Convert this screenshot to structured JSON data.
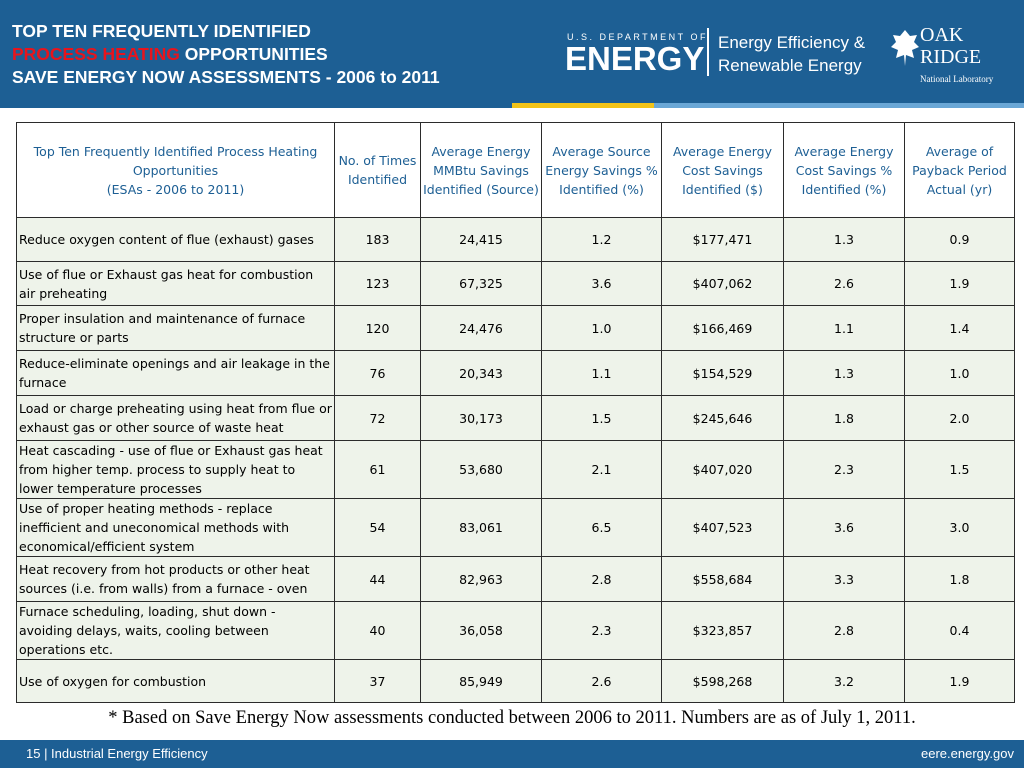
{
  "header": {
    "title_line1": "TOP TEN FREQUENTLY IDENTIFIED",
    "title_highlight": "PROCESS HEATING",
    "title_line2_rest": "OPPORTUNITIES",
    "title_line3": "SAVE ENERGY NOW ASSESSMENTS - 2006 to 2011",
    "doe_small": "U.S. DEPARTMENT OF",
    "doe_big": "ENERGY",
    "eere_line1": "Energy Efficiency &",
    "eere_line2": "Renewable Energy",
    "ornl_line1": "OAK",
    "ornl_line2": "RIDGE",
    "ornl_line3": "National Laboratory"
  },
  "table": {
    "columns": [
      [
        "Top Ten Frequently Identified Process Heating Opportunities",
        "(ESAs - 2006 to 2011)"
      ],
      [
        "No. of Times Identified"
      ],
      [
        "Average Energy MMBtu Savings Identified (Source)"
      ],
      [
        "Average Source Energy Savings % Identified (%)"
      ],
      [
        "Average Energy Cost Savings Identified ($)"
      ],
      [
        "Average Energy Cost Savings % Identified (%)"
      ],
      [
        "Average of Payback Period Actual (yr)"
      ]
    ],
    "rows": [
      [
        "Reduce oxygen content of flue (exhaust) gases",
        "183",
        "24,415",
        "1.2",
        "$177,471",
        "1.3",
        "0.9"
      ],
      [
        "Use of flue or Exhaust gas heat for combustion air preheating",
        "123",
        "67,325",
        "3.6",
        "$407,062",
        "2.6",
        "1.9"
      ],
      [
        "Proper insulation and maintenance of furnace structure or parts",
        "120",
        "24,476",
        "1.0",
        "$166,469",
        "1.1",
        "1.4"
      ],
      [
        "Reduce-eliminate openings and air leakage in the furnace",
        "76",
        "20,343",
        "1.1",
        "$154,529",
        "1.3",
        "1.0"
      ],
      [
        "Load or charge preheating using heat from flue or exhaust gas or other source of waste heat",
        "72",
        "30,173",
        "1.5",
        "$245,646",
        "1.8",
        "2.0"
      ],
      [
        "Heat cascading - use of flue or Exhaust gas heat from higher temp. process to supply heat to lower temperature processes",
        "61",
        "53,680",
        "2.1",
        "$407,020",
        "2.3",
        "1.5"
      ],
      [
        "Use of proper heating methods - replace inefficient and uneconomical methods with economical/efficient system",
        "54",
        "83,061",
        "6.5",
        "$407,523",
        "3.6",
        "3.0"
      ],
      [
        "Heat recovery from hot products or other heat sources (i.e. from walls) from a furnace - oven",
        "44",
        "82,963",
        "2.8",
        "$558,684",
        "3.3",
        "1.8"
      ],
      [
        "Furnace scheduling, loading, shut down - avoiding delays, waits, cooling between operations etc.",
        "40",
        "36,058",
        "2.3",
        "$323,857",
        "2.8",
        "0.4"
      ],
      [
        "Use of oxygen for combustion",
        "37",
        "85,949",
        "2.6",
        "$598,268",
        "3.2",
        "1.9"
      ]
    ]
  },
  "footnote": "* Based on Save Energy Now assessments conducted between 2006 to 2011. Numbers are as of July 1, 2011.",
  "footer": {
    "left": "15 | Industrial Energy Efficiency",
    "right": "eere.energy.gov"
  }
}
